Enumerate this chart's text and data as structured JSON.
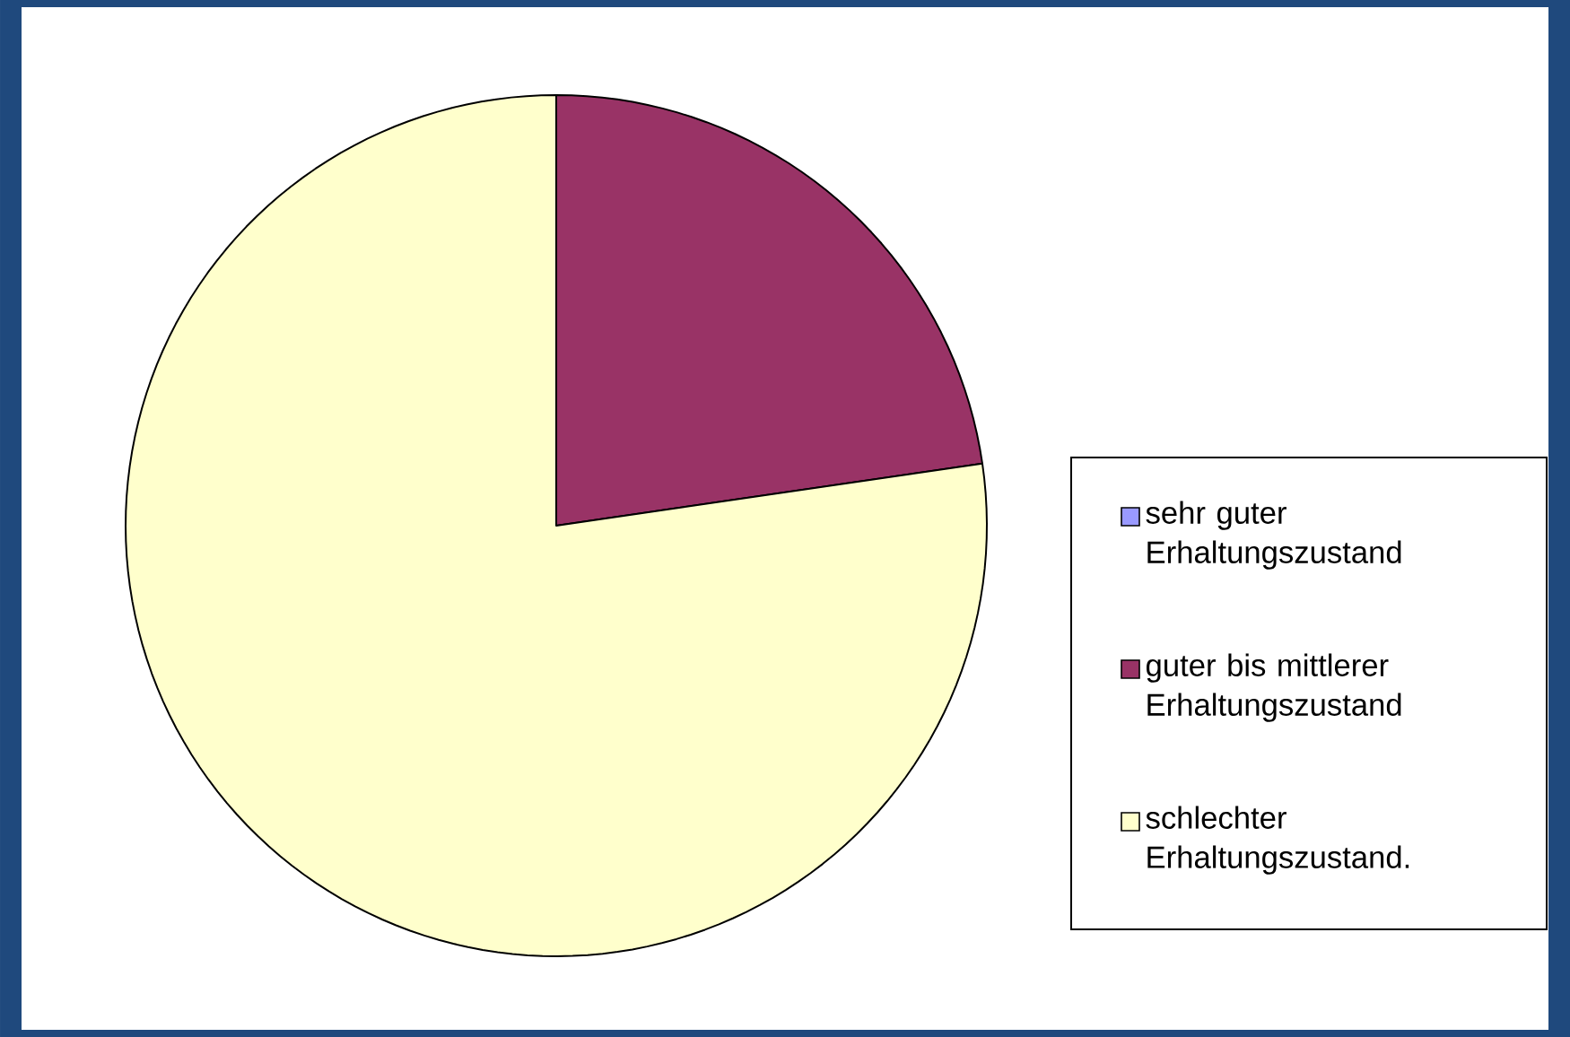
{
  "chart_data": {
    "type": "pie",
    "categories": [
      "sehr guter Erhaltungszustand",
      "guter bis mittlerer Erhaltungszustand",
      "schlechter Erhaltungszustand."
    ],
    "values": [
      0,
      22.7,
      77.3
    ],
    "colors": [
      "#9999ff",
      "#993366",
      "#ffffcc"
    ],
    "legend": "right"
  }
}
